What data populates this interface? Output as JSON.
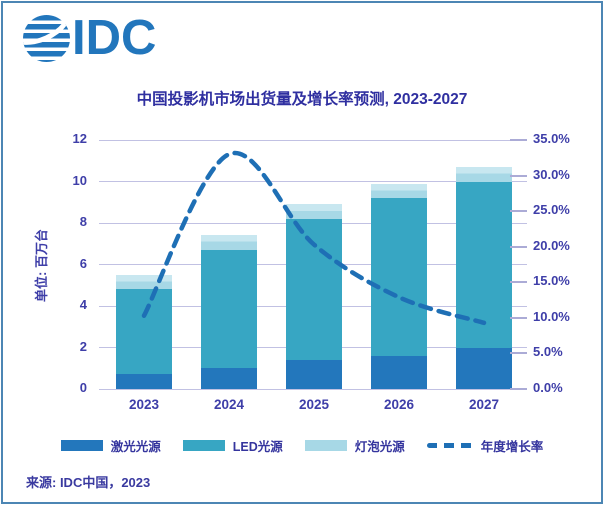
{
  "logo": {
    "text": "IDC",
    "color": "#2276BC"
  },
  "footer": {
    "source": "来源: IDC中国，2023"
  },
  "colors": {
    "frame_border": "#4C86B4",
    "axis_text": "#3E3EA8",
    "gridline": "#C1C1E3",
    "title_text": "#2F2FA0"
  },
  "chart_data": {
    "type": "bar",
    "stacked": true,
    "title": "中国投影机市场出货量及增长率预测, 2023-2027",
    "categories": [
      "2023",
      "2024",
      "2025",
      "2026",
      "2027"
    ],
    "series": [
      {
        "name": "激光光源",
        "type": "bar",
        "color": "#2377BC",
        "values": [
          0.7,
          1.0,
          1.4,
          1.6,
          2.0
        ]
      },
      {
        "name": "LED光源",
        "type": "bar",
        "color": "#37A6C3",
        "values": [
          4.1,
          5.7,
          6.8,
          7.6,
          8.0
        ]
      },
      {
        "name": "灯泡光源",
        "type": "bar",
        "color": "#A7D8E6",
        "color_top": "#C8E7F0",
        "values": [
          0.7,
          0.7,
          0.7,
          0.7,
          0.7
        ]
      },
      {
        "name": "年度增长率",
        "type": "line",
        "style": "dashed",
        "color": "#1E6FB5",
        "values_pct": [
          10.3,
          33.0,
          20.3,
          12.9,
          9.3
        ]
      }
    ],
    "left_axis": {
      "label": "单位: 百万台",
      "ticks": [
        0,
        2,
        4,
        6,
        8,
        10,
        12
      ],
      "min": 0,
      "max": 12
    },
    "right_axis": {
      "ticks": [
        "0.0%",
        "5.0%",
        "10.0%",
        "15.0%",
        "20.0%",
        "25.0%",
        "30.0%",
        "35.0%"
      ],
      "min": 0,
      "max": 35
    },
    "legend_position": "bottom",
    "grid": true
  }
}
